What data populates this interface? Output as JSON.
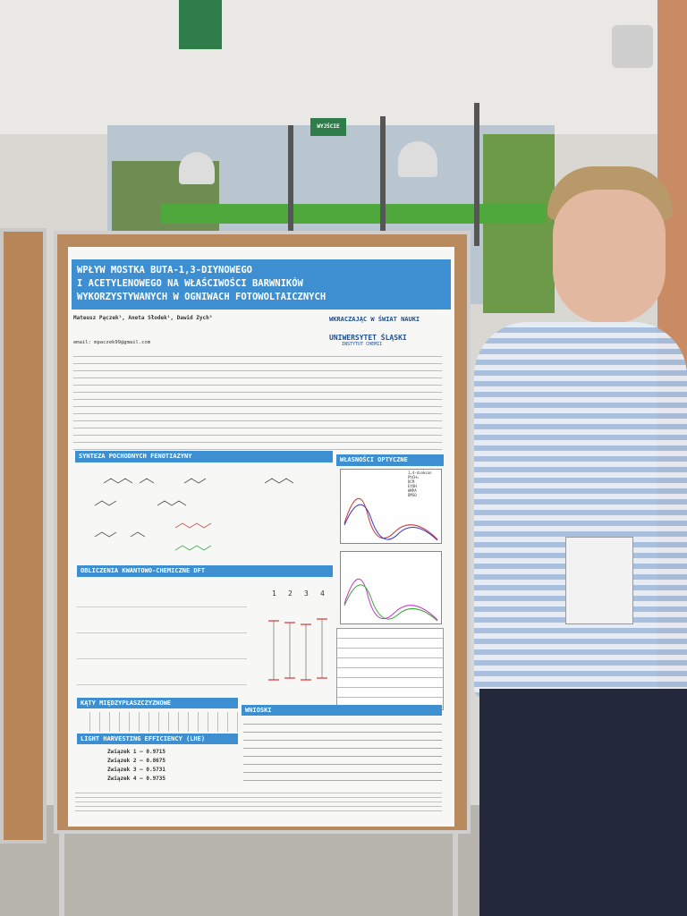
{
  "signs": {
    "exit": "WYJŚCIE"
  },
  "poster": {
    "title_lines": [
      "WPŁYW MOSTKA BUTA-1,3-DIYNOWEGO",
      "I ACETYLENOWEGO NA WŁAŚCIWOŚCI BARWNIKÓW",
      "WYKORZYSTYWANYCH W OGNIWACH FOTOWOLTAICZNYCH"
    ],
    "authors": "Mateusz Pączek¹, Aneta Słodek¹, Dawid Zych²",
    "email": "email: mpaczek99@gmail.com",
    "logo_1": "WKRACZAJĄC W ŚWIAT NAUKI",
    "logo_2": "UNIWERSYTET ŚLĄSKI",
    "logo_2_sub": "INSTYTUT CHEMII",
    "sections": {
      "synthesis": "SYNTEZA POCHODNYCH FENOTIAZYNY",
      "optical": "WŁASNOŚCI OPTYCZNE",
      "dft": "OBLICZENIA KWANTOWO-CHEMICZNE DFT",
      "angles": "KĄTY MIĘDZYPŁASZCZYZNOWE",
      "conclusions": "WNIOSKI",
      "lhe": "LIGHT HARVESTING EFFICIENCY (LHE)"
    },
    "solvents": [
      "1,4-dioksan",
      "PhCH₃",
      "DCM",
      "EtOH",
      "HMPA",
      "DMSO"
    ],
    "lhe_values": [
      "Związek 1 – 0.9715",
      "Związek 2 – 0.8675",
      "Związek 3 – 0.5731",
      "Związek 4 – 0.9735"
    ],
    "dft_labels": [
      "1",
      "2",
      "3",
      "4"
    ]
  }
}
